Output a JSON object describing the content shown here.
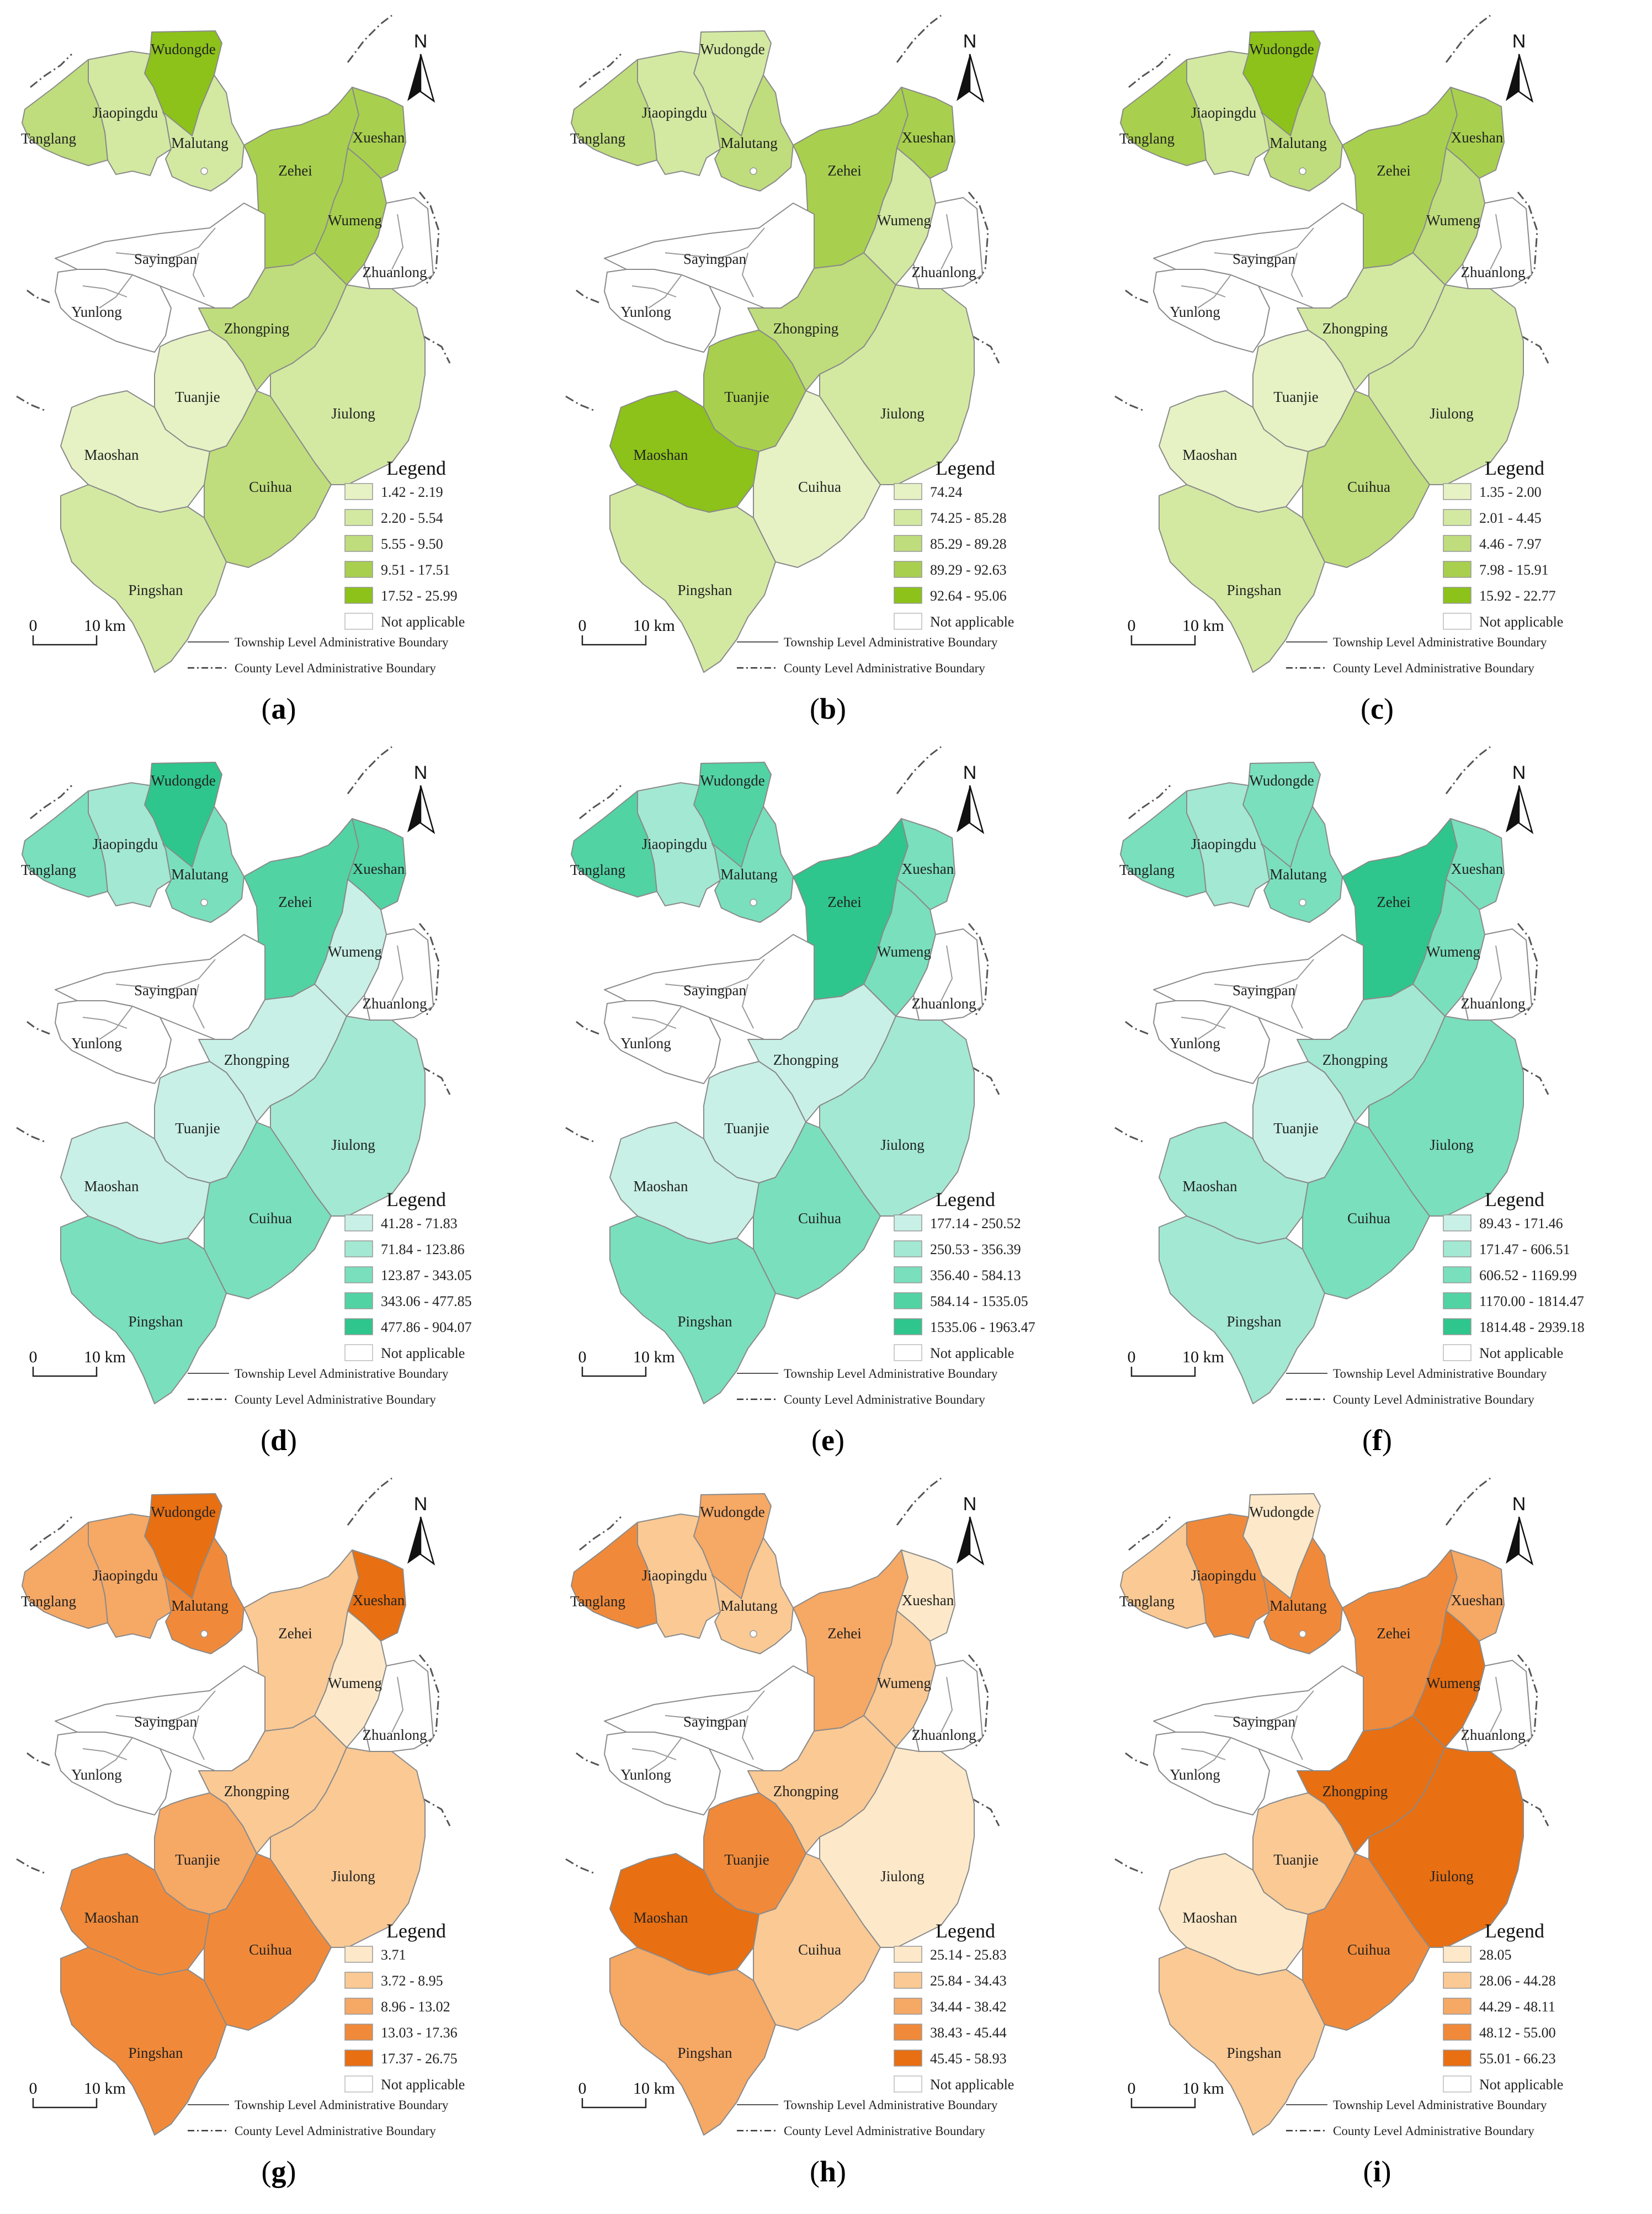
{
  "townships": [
    {
      "key": "wudongde",
      "name": "Wudongde"
    },
    {
      "key": "jiaopingdu",
      "name": "Jiaopingdu"
    },
    {
      "key": "tanglang",
      "name": "Tanglang"
    },
    {
      "key": "malutang",
      "name": "Malutang"
    },
    {
      "key": "zehei",
      "name": "Zehei"
    },
    {
      "key": "xueshan",
      "name": "Xueshan"
    },
    {
      "key": "wumeng",
      "name": "Wumeng"
    },
    {
      "key": "sayingpan",
      "name": "Sayingpan"
    },
    {
      "key": "zhuanlong",
      "name": "Zhuanlong"
    },
    {
      "key": "yunlong",
      "name": "Yunlong"
    },
    {
      "key": "zhongping",
      "name": "Zhongping"
    },
    {
      "key": "tuanjie",
      "name": "Tuanjie"
    },
    {
      "key": "jiulong",
      "name": "Jiulong"
    },
    {
      "key": "maoshan",
      "name": "Maoshan"
    },
    {
      "key": "cuihua",
      "name": "Cuihua"
    },
    {
      "key": "pingshan",
      "name": "Pingshan"
    }
  ],
  "common": {
    "north": "N",
    "legend_title": "Legend",
    "not_applicable": "Not applicable",
    "scale_zero": "0",
    "scale_km": "10 km",
    "township_boundary": "Township Level Administrative Boundary",
    "county_boundary": "County Level Administrative Boundary"
  },
  "panels": [
    {
      "id": "a",
      "caption": "a",
      "palette": [
        "#e6f2c4",
        "#d3e9a2",
        "#bfdd7c",
        "#a8d04e",
        "#8cc21a"
      ],
      "legend": [
        "1.42 - 2.19",
        "2.20 - 5.54",
        "5.55 - 9.50",
        "9.51 - 17.51",
        "17.52 - 25.99"
      ],
      "classes": {
        "wudongde": 4,
        "jiaopingdu": 1,
        "tanglang": 2,
        "malutang": 1,
        "zehei": 3,
        "xueshan": 3,
        "wumeng": 3,
        "zhongping": 2,
        "tuanjie": 0,
        "jiulong": 1,
        "maoshan": 0,
        "cuihua": 2,
        "pingshan": 1
      }
    },
    {
      "id": "b",
      "caption": "b",
      "palette": [
        "#e6f2c4",
        "#d3e9a2",
        "#bfdd7c",
        "#a8d04e",
        "#8cc21a"
      ],
      "legend": [
        "74.24",
        "74.25 - 85.28",
        "85.29 - 89.28",
        "89.29 - 92.63",
        "92.64 - 95.06"
      ],
      "classes": {
        "wudongde": 1,
        "jiaopingdu": 1,
        "tanglang": 2,
        "malutang": 2,
        "zehei": 3,
        "xueshan": 3,
        "wumeng": 1,
        "zhongping": 2,
        "tuanjie": 3,
        "jiulong": 1,
        "maoshan": 4,
        "cuihua": 0,
        "pingshan": 1
      }
    },
    {
      "id": "c",
      "caption": "c",
      "palette": [
        "#e6f2c4",
        "#d3e9a2",
        "#bfdd7c",
        "#a8d04e",
        "#8cc21a"
      ],
      "legend": [
        "1.35 - 2.00",
        "2.01 - 4.45",
        "4.46 - 7.97",
        "7.98 - 15.91",
        "15.92 - 22.77"
      ],
      "classes": {
        "wudongde": 4,
        "jiaopingdu": 1,
        "tanglang": 3,
        "malutang": 2,
        "zehei": 3,
        "xueshan": 3,
        "wumeng": 2,
        "zhongping": 1,
        "tuanjie": 0,
        "jiulong": 1,
        "maoshan": 0,
        "cuihua": 2,
        "pingshan": 1
      }
    },
    {
      "id": "d",
      "caption": "d",
      "palette": [
        "#c8f0e6",
        "#a3e8d2",
        "#7adfbd",
        "#52d3a4",
        "#2ec68c"
      ],
      "legend": [
        "41.28 - 71.83",
        "71.84 - 123.86",
        "123.87 - 343.05",
        "343.06 - 477.85",
        "477.86 - 904.07"
      ],
      "classes": {
        "wudongde": 4,
        "jiaopingdu": 1,
        "tanglang": 2,
        "malutang": 2,
        "zehei": 3,
        "xueshan": 3,
        "wumeng": 0,
        "zhongping": 0,
        "tuanjie": 0,
        "jiulong": 1,
        "maoshan": 0,
        "cuihua": 2,
        "pingshan": 2
      }
    },
    {
      "id": "e",
      "caption": "e",
      "palette": [
        "#c8f0e6",
        "#a3e8d2",
        "#7adfbd",
        "#52d3a4",
        "#2ec68c"
      ],
      "legend": [
        "177.14 - 250.52",
        "250.53 - 356.39",
        "356.40 - 584.13",
        "584.14 - 1535.05",
        "1535.06 - 1963.47"
      ],
      "classes": {
        "wudongde": 3,
        "jiaopingdu": 1,
        "tanglang": 3,
        "malutang": 2,
        "zehei": 4,
        "xueshan": 2,
        "wumeng": 2,
        "zhongping": 0,
        "tuanjie": 0,
        "jiulong": 1,
        "maoshan": 0,
        "cuihua": 2,
        "pingshan": 2
      }
    },
    {
      "id": "f",
      "caption": "f",
      "palette": [
        "#c8f0e6",
        "#a3e8d2",
        "#7adfbd",
        "#52d3a4",
        "#2ec68c"
      ],
      "legend": [
        "89.43 - 171.46",
        "171.47 - 606.51",
        "606.52 - 1169.99",
        "1170.00 - 1814.47",
        "1814.48 - 2939.18"
      ],
      "classes": {
        "wudongde": 2,
        "jiaopingdu": 1,
        "tanglang": 2,
        "malutang": 2,
        "zehei": 4,
        "xueshan": 2,
        "wumeng": 2,
        "zhongping": 1,
        "tuanjie": 0,
        "jiulong": 2,
        "maoshan": 1,
        "cuihua": 2,
        "pingshan": 1
      }
    },
    {
      "id": "g",
      "caption": "g",
      "palette": [
        "#fde9c9",
        "#fac994",
        "#f6a865",
        "#f08a3a",
        "#e86f12"
      ],
      "legend": [
        "3.71",
        "3.72 - 8.95",
        "8.96 - 13.02",
        "13.03 - 17.36",
        "17.37 - 26.75"
      ],
      "classes": {
        "wudongde": 4,
        "jiaopingdu": 2,
        "tanglang": 2,
        "malutang": 3,
        "zehei": 1,
        "xueshan": 4,
        "wumeng": 0,
        "zhongping": 1,
        "tuanjie": 2,
        "jiulong": 1,
        "maoshan": 3,
        "cuihua": 3,
        "pingshan": 3
      }
    },
    {
      "id": "h",
      "caption": "h",
      "palette": [
        "#fde9c9",
        "#fac994",
        "#f6a865",
        "#f08a3a",
        "#e86f12"
      ],
      "legend": [
        "25.14 - 25.83",
        "25.84 - 34.43",
        "34.44 - 38.42",
        "38.43 - 45.44",
        "45.45 - 58.93"
      ],
      "classes": {
        "wudongde": 2,
        "jiaopingdu": 1,
        "tanglang": 3,
        "malutang": 1,
        "zehei": 2,
        "xueshan": 0,
        "wumeng": 1,
        "zhongping": 1,
        "tuanjie": 3,
        "jiulong": 0,
        "maoshan": 4,
        "cuihua": 1,
        "pingshan": 2
      }
    },
    {
      "id": "i",
      "caption": "i",
      "palette": [
        "#fde9c9",
        "#fac994",
        "#f6a865",
        "#f08a3a",
        "#e86f12"
      ],
      "legend": [
        "28.05",
        "28.06 - 44.28",
        "44.29 - 48.11",
        "48.12 - 55.00",
        "55.01 - 66.23"
      ],
      "classes": {
        "wudongde": 0,
        "jiaopingdu": 3,
        "tanglang": 1,
        "malutang": 3,
        "zehei": 3,
        "xueshan": 2,
        "wumeng": 4,
        "zhongping": 4,
        "tuanjie": 1,
        "jiulong": 4,
        "maoshan": 0,
        "cuihua": 3,
        "pingshan": 1
      }
    }
  ]
}
